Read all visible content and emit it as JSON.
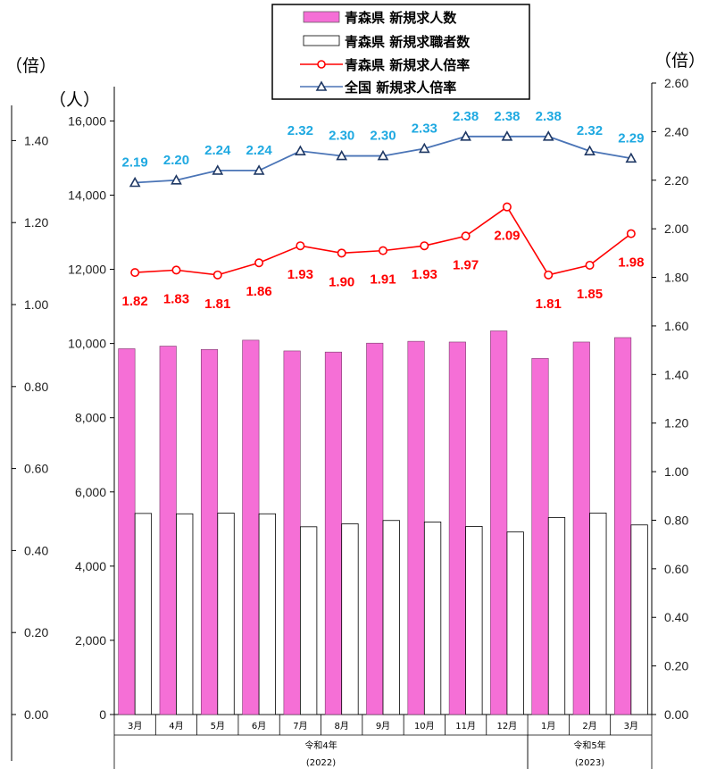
{
  "chart_data": {
    "type": "bar",
    "units": {
      "left_outer": "（倍）",
      "people": "（人）",
      "right": "（倍）"
    },
    "categories": [
      "3月",
      "4月",
      "5月",
      "6月",
      "7月",
      "8月",
      "9月",
      "10月",
      "11月",
      "12月",
      "1月",
      "2月",
      "3月"
    ],
    "year_groups": [
      {
        "label": "令和4年",
        "sub": "(2022)",
        "count": 10
      },
      {
        "label": "令和5年",
        "sub": "(2023)",
        "count": 3
      }
    ],
    "y_people": {
      "min": 0,
      "max": 16000,
      "ticks": [
        "0",
        "2,000",
        "4,000",
        "6,000",
        "8,000",
        "10,000",
        "12,000",
        "14,000",
        "16,000"
      ]
    },
    "y_ratio_right": {
      "min": 0,
      "max": 2.6,
      "ticks": [
        "0.00",
        "0.20",
        "0.40",
        "0.60",
        "0.80",
        "1.00",
        "1.20",
        "1.40",
        "1.60",
        "1.80",
        "2.00",
        "2.20",
        "2.40",
        "2.60"
      ]
    },
    "y_ratio_left": {
      "ticks": [
        "0.00",
        "0.20",
        "0.40",
        "0.60",
        "0.80",
        "1.00",
        "1.20",
        "1.40"
      ]
    },
    "series": [
      {
        "name": "青森県 新規求人数",
        "type": "bar",
        "color": "#f56fd6",
        "values": [
          9860,
          9930,
          9840,
          10090,
          9800,
          9770,
          10010,
          10060,
          10040,
          10340,
          9600,
          10040,
          10160
        ]
      },
      {
        "name": "青森県 新規求職者数",
        "type": "bar",
        "color": "#ffffff",
        "values": [
          5420,
          5410,
          5430,
          5410,
          5060,
          5140,
          5230,
          5190,
          5070,
          4920,
          5310,
          5430,
          5110
        ]
      },
      {
        "name": "青森県 新規求人倍率",
        "type": "line",
        "color": "#ff0000",
        "values": [
          1.82,
          1.83,
          1.81,
          1.86,
          1.93,
          1.9,
          1.91,
          1.93,
          1.97,
          2.09,
          1.81,
          1.85,
          1.98
        ],
        "labels": [
          "1.82",
          "1.83",
          "1.81",
          "1.86",
          "1.93",
          "1.90",
          "1.91",
          "1.93",
          "1.97",
          "2.09",
          "1.81",
          "1.85",
          "1.98"
        ]
      },
      {
        "name": "全国 新規求人倍率",
        "type": "line",
        "color": "#4a74b6",
        "values": [
          2.19,
          2.2,
          2.24,
          2.24,
          2.32,
          2.3,
          2.3,
          2.33,
          2.38,
          2.38,
          2.38,
          2.32,
          2.29
        ],
        "labels": [
          "2.19",
          "2.20",
          "2.24",
          "2.24",
          "2.32",
          "2.30",
          "2.30",
          "2.33",
          "2.38",
          "2.38",
          "2.38",
          "2.32",
          "2.29"
        ]
      }
    ],
    "legend_position": "top-center",
    "grid": false
  }
}
